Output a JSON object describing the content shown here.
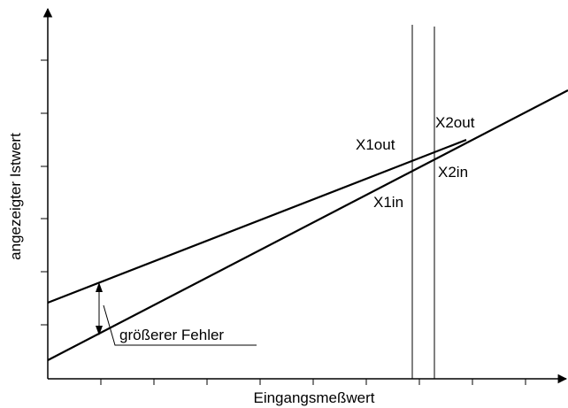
{
  "y_axis_label": "angezeigter Istwert",
  "x_axis_label": "Eingangsmeßwert",
  "points": {
    "x1out": "X1out",
    "x2out": "X2out",
    "x1in": "X1in",
    "x2in": "X2in"
  },
  "annotation": "größerer Fehler"
}
